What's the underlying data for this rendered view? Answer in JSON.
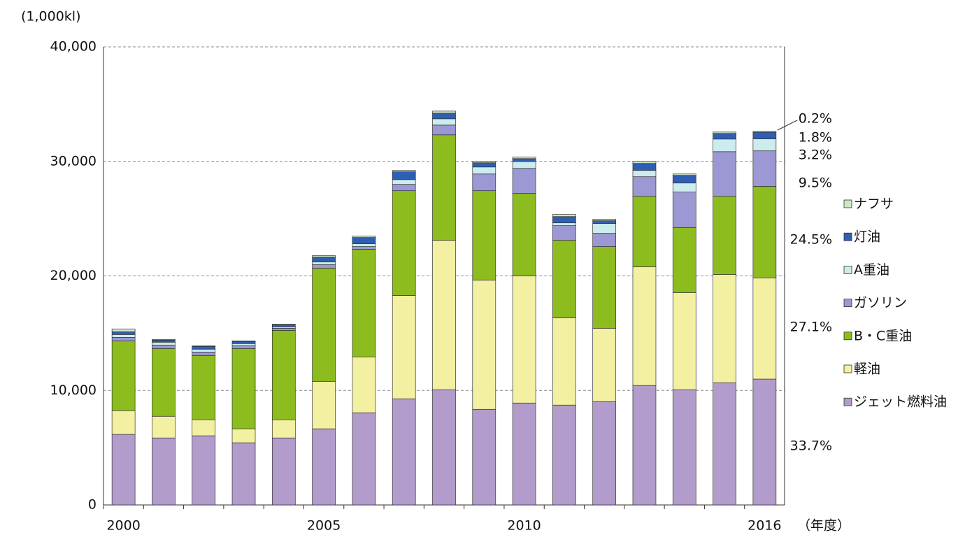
{
  "chart_data": {
    "type": "stacked_bar",
    "y_label": "(1,000kl)",
    "x_label": "（年度）",
    "categories": [
      "2000",
      null,
      null,
      null,
      null,
      "2005",
      null,
      null,
      null,
      null,
      "2010",
      null,
      null,
      null,
      null,
      null,
      "2016"
    ],
    "ylim": [
      0,
      40000
    ],
    "yticks": [
      0,
      {
        "value": 10000,
        "label": "10,000"
      },
      {
        "value": 20000,
        "label": "20,000"
      },
      {
        "value": 30000,
        "label": "30,000"
      },
      {
        "value": 40000,
        "label": "40,000"
      }
    ],
    "grid": true,
    "series": [
      {
        "name": "ジェット燃料油",
        "color": "#b19ccb",
        "values": [
          6160,
          5850,
          6040,
          5430,
          5850,
          6650,
          8050,
          9270,
          10060,
          8350,
          8900,
          8720,
          9020,
          10430,
          10060,
          10670,
          10990
        ]
      },
      {
        "name": "軽油",
        "color": "#f4f0a2",
        "values": [
          2070,
          1890,
          1400,
          1220,
          1590,
          4140,
          4880,
          9020,
          13050,
          11280,
          11100,
          7620,
          6410,
          10360,
          8480,
          9450,
          8840
        ]
      },
      {
        "name": "B・C重油",
        "color": "#8dbc1e",
        "values": [
          6100,
          5920,
          5610,
          7010,
          7800,
          9880,
          9390,
          9150,
          9210,
          7810,
          7200,
          6770,
          7130,
          6160,
          5670,
          6830,
          7990
        ]
      },
      {
        "name": "ガソリン",
        "color": "#9b98d3",
        "values": [
          300,
          300,
          300,
          240,
          190,
          310,
          240,
          550,
          850,
          1460,
          2190,
          1280,
          1160,
          1710,
          3110,
          3900,
          3100
        ]
      },
      {
        "name": "A重油",
        "color": "#ccecee",
        "values": [
          250,
          250,
          250,
          190,
          120,
          240,
          240,
          420,
          550,
          610,
          600,
          240,
          850,
          550,
          790,
          1100,
          1040
        ]
      },
      {
        "name": "灯油",
        "color": "#2f5fb3",
        "values": [
          240,
          180,
          240,
          180,
          180,
          430,
          550,
          680,
          490,
          370,
          250,
          550,
          250,
          610,
          670,
          490,
          590
        ]
      },
      {
        "name": "ナフサ",
        "color": "#cfe6c8",
        "values": [
          250,
          60,
          60,
          60,
          60,
          120,
          130,
          120,
          180,
          120,
          130,
          190,
          120,
          180,
          120,
          120,
          65
        ]
      }
    ],
    "annotations": [
      "0.2%",
      "1.8%",
      "3.2%",
      "9.5%",
      "24.5%",
      "27.1%",
      "33.7%"
    ]
  }
}
